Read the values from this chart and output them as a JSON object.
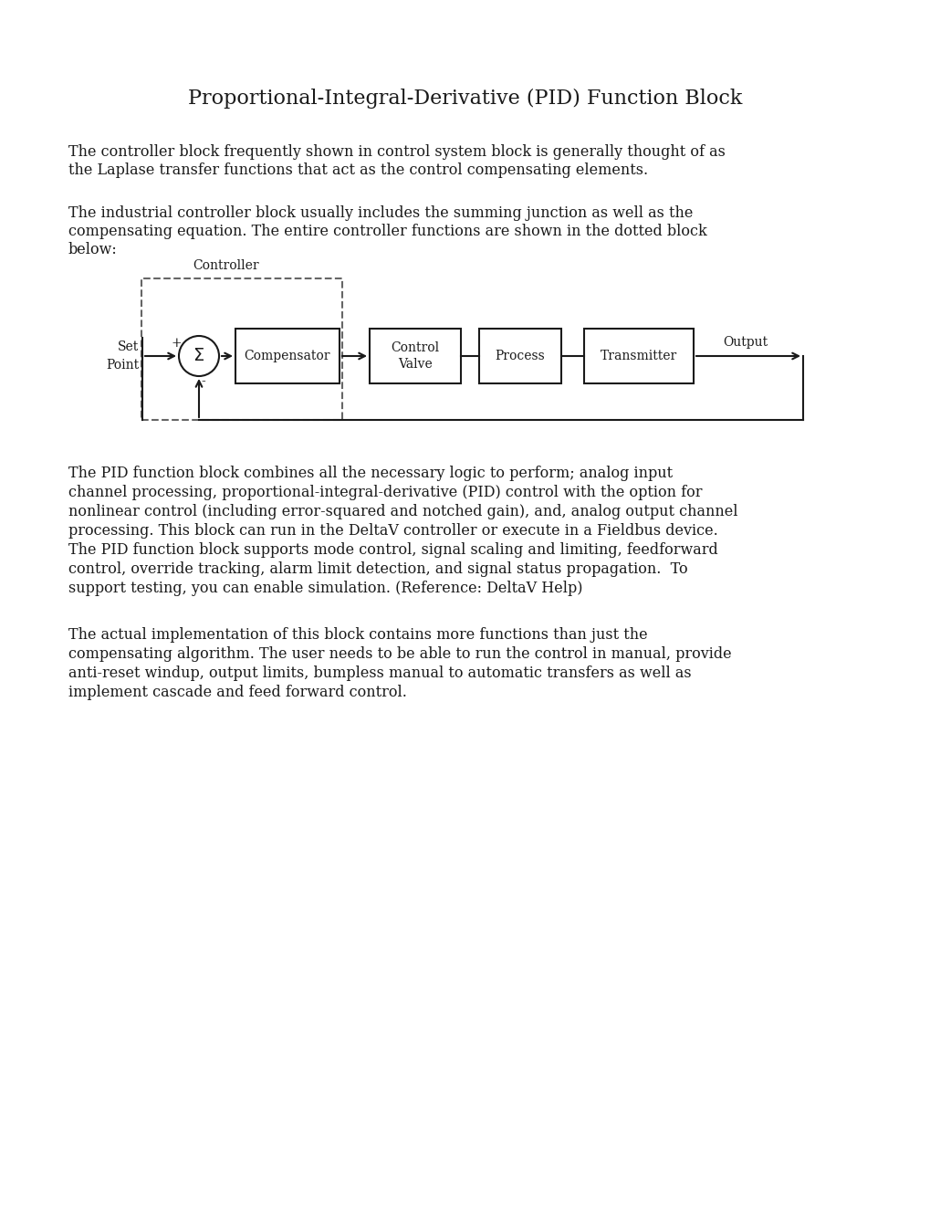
{
  "title": "Proportional-Integral-Derivative (PID) Function Block",
  "para1": "The controller block frequently shown in control system block is generally thought of as the Laplase transfer functions that act as the control compensating elements.",
  "para2": "The industrial controller block usually includes the summing junction as well as the compensating equation. The entire controller functions are shown in the dotted block below:",
  "para3": "The PID function block combines all the necessary logic to perform; analog input channel processing, proportional-integral-derivative (PID) control with the option for nonlinear control (including error-squared and notched gain), and, analog output channel processing. This block can run in the DeltaV controller or execute in a Fieldbus device. The PID function block supports mode control, signal scaling and limiting, feedforward control, override tracking, alarm limit detection, and signal status propagation.  To support testing, you can enable simulation. (Reference: DeltaV Help)",
  "para4": "The actual implementation of this block contains more functions than just the compensating algorithm. The user needs to be able to run the control in manual, provide anti-reset windup, output limits, bumpless manual to automatic transfers as well as implement cascade and feed forward control.",
  "bg_color": "#ffffff",
  "text_color": "#1a1a1a",
  "diagram_color": "#1a1a1a"
}
